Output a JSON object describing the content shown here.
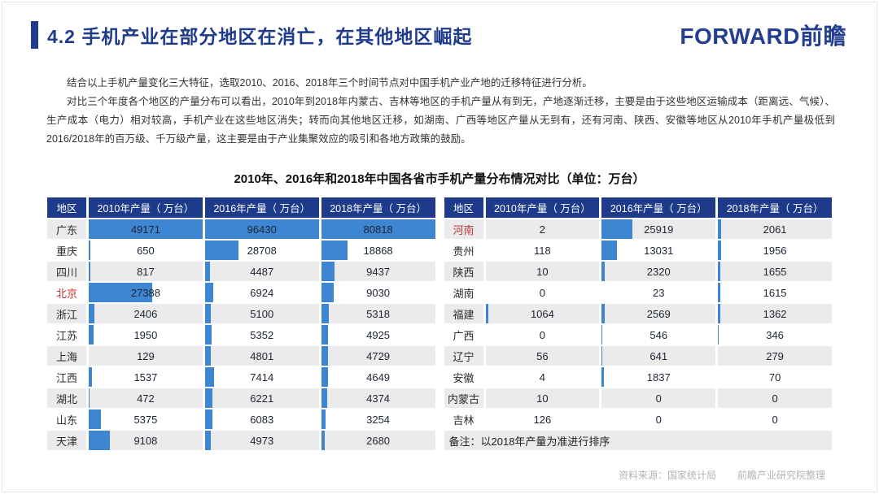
{
  "page": {
    "title": "4.2 手机产业在部分地区在消亡，在其他地区崛起",
    "logo": "FORWARD前瞻"
  },
  "paragraphs": [
    "结合以上手机产量变化三大特征，选取2010、2016、2018年三个时间节点对中国手机产业产地的迁移特征进行分析。",
    "对比三个年度各个地区的产量分布可以看出，2010年到2018年内蒙古、吉林等地区的手机产量从有到无，产地逐渐迁移，主要是由于这些地区运输成本（距离远、气候）、生产成本（电力）相对较高，手机产业在这些地区消失；转而向其他地区迁移，如湖南、广西等地区产量从无到有，还有河南、陕西、安徽等地区从2010年手机产量极低到2016/2018年的百万级、千万级产量，这主要是由于产业集聚效应的吸引和各地方政策的鼓励。"
  ],
  "chart_data": {
    "type": "table",
    "title": "2010年、2016年和2018年中国各省市手机产量分布情况对比（单位：万台）",
    "columns": [
      "地区",
      "2010年产量（ 万台）",
      "2016年产量（ 万台）",
      "2018年产量（ 万台）"
    ],
    "bar_max": [
      49171,
      96430,
      80818
    ],
    "left_rows": [
      {
        "region": "广东",
        "values": [
          49171,
          96430,
          80818
        ]
      },
      {
        "region": "重庆",
        "values": [
          650,
          28708,
          18868
        ]
      },
      {
        "region": "四川",
        "values": [
          817,
          4487,
          9437
        ]
      },
      {
        "region": "北京",
        "values": [
          27388,
          6924,
          9030
        ],
        "highlight": true
      },
      {
        "region": "浙江",
        "values": [
          2406,
          5100,
          5318
        ]
      },
      {
        "region": "江苏",
        "values": [
          1950,
          5352,
          4925
        ]
      },
      {
        "region": "上海",
        "values": [
          129,
          4801,
          4729
        ]
      },
      {
        "region": "江西",
        "values": [
          1537,
          7414,
          4649
        ]
      },
      {
        "region": "湖北",
        "values": [
          472,
          6221,
          4374
        ]
      },
      {
        "region": "山东",
        "values": [
          5375,
          6083,
          3254
        ]
      },
      {
        "region": "天津",
        "values": [
          9108,
          4973,
          2680
        ]
      }
    ],
    "right_rows": [
      {
        "region": "河南",
        "values": [
          2,
          25919,
          2061
        ],
        "highlight": true
      },
      {
        "region": "贵州",
        "values": [
          118,
          13031,
          1956
        ]
      },
      {
        "region": "陕西",
        "values": [
          10,
          2320,
          1655
        ]
      },
      {
        "region": "湖南",
        "values": [
          0,
          23,
          1615
        ]
      },
      {
        "region": "福建",
        "values": [
          1064,
          2569,
          1362
        ]
      },
      {
        "region": "广西",
        "values": [
          0,
          546,
          346
        ]
      },
      {
        "region": "辽宁",
        "values": [
          56,
          641,
          279
        ]
      },
      {
        "region": "安徽",
        "values": [
          4,
          1837,
          70
        ]
      },
      {
        "region": "内蒙古",
        "values": [
          10,
          0,
          0
        ]
      },
      {
        "region": "吉林",
        "values": [
          126,
          0,
          0
        ]
      }
    ],
    "note": "备注：以2018年产量为准进行排序"
  },
  "footer": {
    "source": "资料来源：国家统计局",
    "org": "前瞻产业研究院整理"
  },
  "colors": {
    "accent": "#1f3c8c",
    "table_header_bg": "#1e3a8a",
    "data_bar": "#3e86d2",
    "row_stripe": "#ebebeb",
    "highlight_red": "#c03535",
    "footer_gray": "#b3b3b3"
  }
}
